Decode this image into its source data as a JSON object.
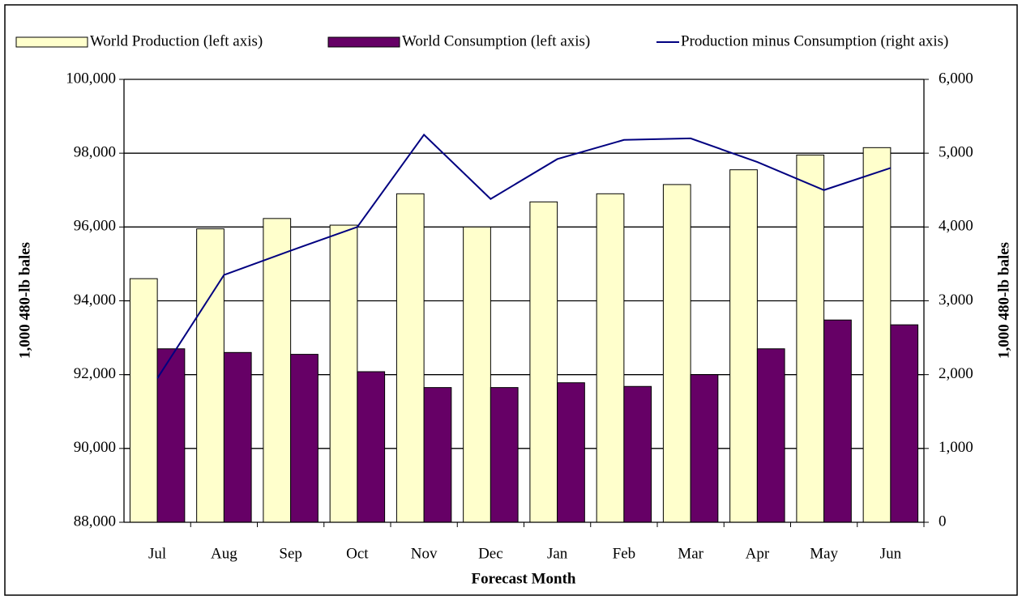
{
  "chart_data": {
    "type": "bar_line",
    "x_label": "Forecast Month",
    "y_label": "1,000 480-lb bales",
    "y2_label": "1,000 480-lb bales",
    "categories": [
      "Jul",
      "Aug",
      "Sep",
      "Oct",
      "Nov",
      "Dec",
      "Jan",
      "Feb",
      "Mar",
      "Apr",
      "May",
      "Jun"
    ],
    "series": [
      {
        "name": "World Production (left axis)",
        "type": "bar",
        "color": "#ffffcc",
        "values": [
          94600,
          95950,
          96230,
          96050,
          96900,
          96000,
          96680,
          96900,
          97150,
          97550,
          97950,
          98150
        ]
      },
      {
        "name": "World Consumption (left axis)",
        "type": "bar",
        "color": "#660066",
        "values": [
          92700,
          92600,
          92550,
          92080,
          91650,
          91650,
          91780,
          91680,
          92000,
          92700,
          93480,
          93350
        ]
      },
      {
        "name": "Production minus Consumption (right axis)",
        "type": "line",
        "axis": "y2",
        "color": "#000080",
        "values": [
          1950,
          3350,
          3680,
          4000,
          5250,
          4380,
          4920,
          5180,
          5200,
          4880,
          4500,
          4800
        ]
      }
    ],
    "ylim": [
      88000,
      100000
    ],
    "yticks": [
      {
        "value": 88000,
        "label": "88,000"
      },
      {
        "value": 90000,
        "label": "90,000"
      },
      {
        "value": 92000,
        "label": "92,000"
      },
      {
        "value": 94000,
        "label": "94,000"
      },
      {
        "value": 96000,
        "label": "96,000"
      },
      {
        "value": 98000,
        "label": "98,000"
      },
      {
        "value": 100000,
        "label": "100,000"
      }
    ],
    "y2lim": [
      0,
      6000
    ],
    "y2ticks": [
      0,
      {
        "value": 1000,
        "label": "1,000"
      },
      {
        "value": 2000,
        "label": "2,000"
      },
      {
        "value": 3000,
        "label": "3,000"
      },
      {
        "value": 4000,
        "label": "4,000"
      },
      {
        "value": 5000,
        "label": "5,000"
      },
      {
        "value": 6000,
        "label": "6,000"
      }
    ],
    "grid": true,
    "legend": "top"
  }
}
